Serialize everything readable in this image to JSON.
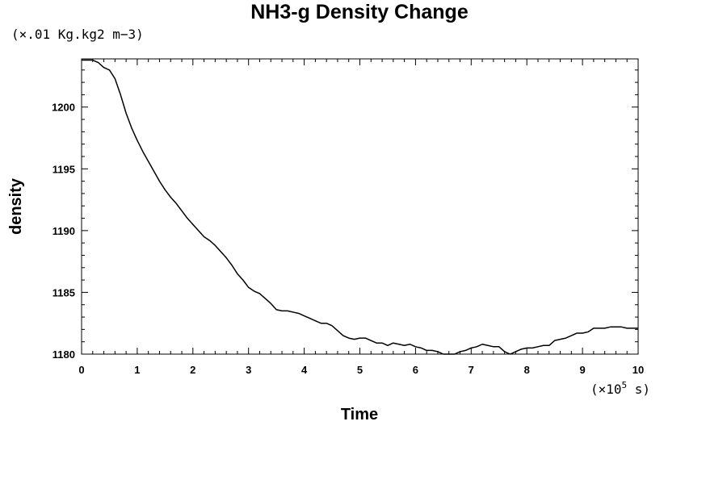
{
  "chart_data": {
    "type": "line",
    "title": "NH3-g Density Change",
    "y_unit_label": "(×.01 Kg.kg2 m−3)",
    "xlabel": "Time",
    "ylabel": "density",
    "x_unit_label": "(×10",
    "x_unit_exp": "5",
    "x_unit_suffix": " s)",
    "xlim": [
      0,
      10
    ],
    "ylim": [
      1180,
      1203.9
    ],
    "x_ticks": [
      "0",
      "1",
      "2",
      "3",
      "4",
      "5",
      "6",
      "7",
      "8",
      "9",
      "10"
    ],
    "y_ticks": [
      "1180",
      "1185",
      "1190",
      "1195",
      "1200"
    ],
    "grid": false,
    "series": [
      {
        "color": "#000000",
        "x": [
          0,
          0.1,
          0.2,
          0.3,
          0.4,
          0.5,
          0.6,
          0.7,
          0.8,
          0.9,
          1.0,
          1.1,
          1.2,
          1.3,
          1.4,
          1.5,
          1.6,
          1.7,
          1.8,
          1.9,
          2.0,
          2.1,
          2.2,
          2.3,
          2.4,
          2.5,
          2.6,
          2.7,
          2.8,
          2.9,
          3.0,
          3.1,
          3.2,
          3.3,
          3.4,
          3.5,
          3.6,
          3.7,
          3.8,
          3.9,
          4.0,
          4.1,
          4.2,
          4.3,
          4.4,
          4.5,
          4.6,
          4.7,
          4.8,
          4.9,
          5.0,
          5.1,
          5.2,
          5.3,
          5.4,
          5.5,
          5.6,
          5.7,
          5.8,
          5.9,
          6.0,
          6.1,
          6.2,
          6.3,
          6.4,
          6.5,
          6.6,
          6.7,
          6.8,
          6.9,
          7.0,
          7.1,
          7.2,
          7.3,
          7.4,
          7.5,
          7.6,
          7.7,
          7.8,
          7.9,
          8.0,
          8.1,
          8.2,
          8.3,
          8.4,
          8.5,
          8.6,
          8.7,
          8.8,
          8.9,
          9.0,
          9.1,
          9.2,
          9.3,
          9.4,
          9.5,
          9.6,
          9.7,
          9.8,
          9.9,
          10.0
        ],
        "values": [
          1203.8,
          1203.8,
          1203.8,
          1203.6,
          1203.2,
          1203.0,
          1202.3,
          1201.0,
          1199.5,
          1198.3,
          1197.3,
          1196.4,
          1195.6,
          1194.8,
          1194.0,
          1193.3,
          1192.7,
          1192.2,
          1191.6,
          1191.0,
          1190.5,
          1190.0,
          1189.5,
          1189.2,
          1188.8,
          1188.3,
          1187.8,
          1187.2,
          1186.5,
          1186.0,
          1185.4,
          1185.1,
          1184.9,
          1184.5,
          1184.1,
          1183.6,
          1183.5,
          1183.5,
          1183.4,
          1183.3,
          1183.1,
          1182.9,
          1182.7,
          1182.5,
          1182.5,
          1182.3,
          1181.9,
          1181.5,
          1181.3,
          1181.2,
          1181.3,
          1181.3,
          1181.1,
          1180.9,
          1180.9,
          1180.7,
          1180.9,
          1180.8,
          1180.7,
          1180.8,
          1180.6,
          1180.5,
          1180.3,
          1180.3,
          1180.2,
          1180.0,
          1180.0,
          1180.0,
          1180.2,
          1180.3,
          1180.5,
          1180.6,
          1180.8,
          1180.7,
          1180.6,
          1180.6,
          1180.2,
          1180.0,
          1180.2,
          1180.4,
          1180.5,
          1180.5,
          1180.6,
          1180.7,
          1180.7,
          1181.1,
          1181.2,
          1181.3,
          1181.5,
          1181.7,
          1181.7,
          1181.8,
          1182.1,
          1182.1,
          1182.1,
          1182.2,
          1182.2,
          1182.2,
          1182.1,
          1182.1,
          1182.1
        ]
      }
    ]
  }
}
